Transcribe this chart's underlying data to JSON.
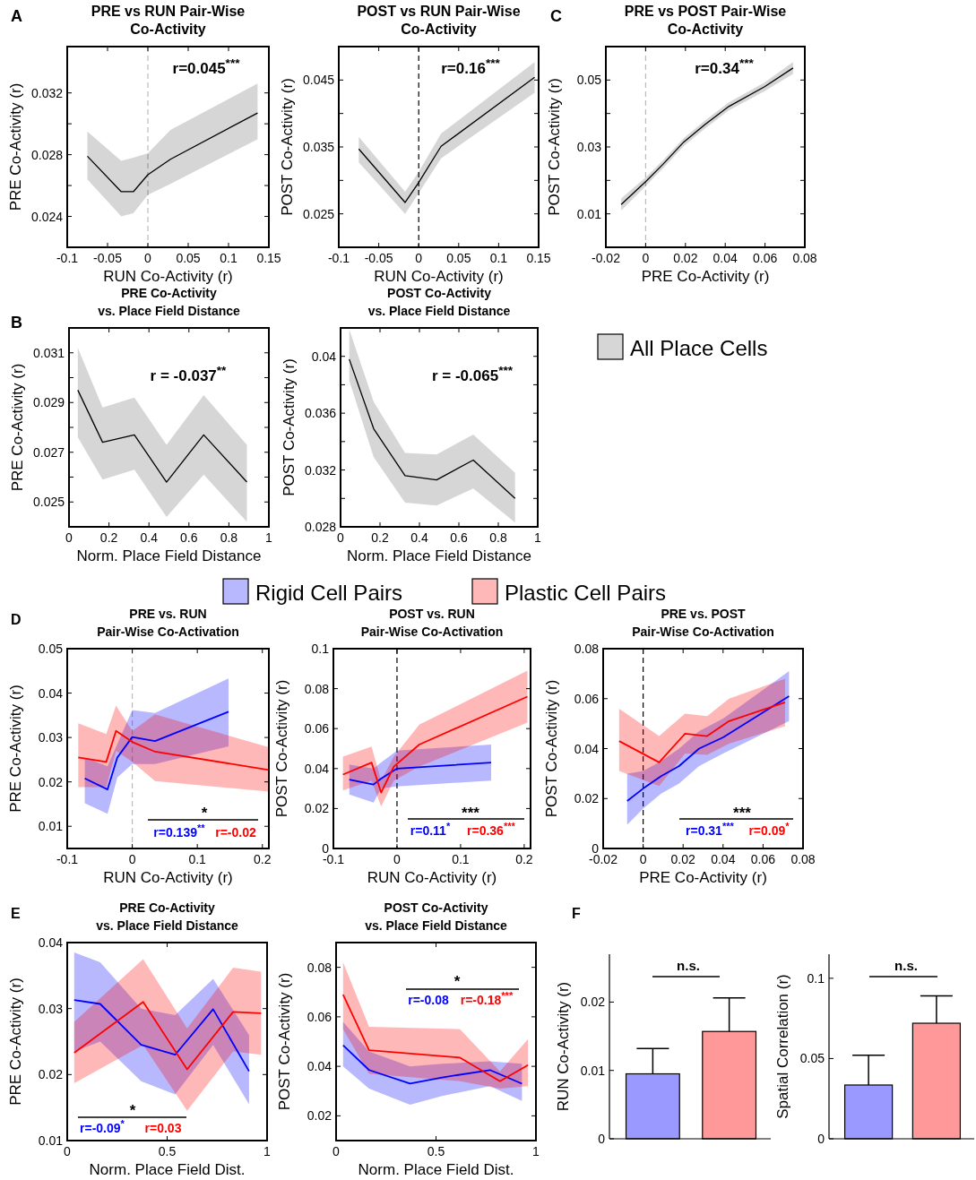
{
  "chart_data": [
    {
      "type": "line",
      "title": "PRE vs RUN Pair-Wise\nCo-Activity",
      "xlabel": "RUN Co-Activity (r)",
      "ylabel": "PRE Co-Activity (r)",
      "annotations": [
        "A",
        "r=0.045$^{***}$"
      ],
      "xlim": [
        -0.1,
        0.15
      ],
      "xticks": [
        -0.1,
        -0.05,
        0,
        0.05,
        0.1,
        0.15
      ],
      "ylim": [
        0.022,
        0.035
      ],
      "yticks": [
        0.024,
        {
          "value": 0.026,
          "label": null
        },
        0.028,
        {
          "value": 0.03,
          "label": null
        },
        0.032
      ],
      "ref_lines": [
        {
          "axis": "x",
          "value": 0,
          "color": "#bbbbbb",
          "line_style": "dashed"
        }
      ],
      "series": [
        {
          "color": "#000000",
          "x": [
            -0.075,
            -0.033,
            -0.018,
            0,
            0.028,
            0.136
          ],
          "values": [
            0.0279,
            0.0256,
            0.0256,
            0.0267,
            0.0277,
            0.0307
          ],
          "lower": [
            0.0264,
            0.024,
            0.0242,
            0.0254,
            0.0261,
            0.029
          ],
          "upper": [
            0.0295,
            0.0276,
            0.0278,
            0.0281,
            0.0296,
            0.0326
          ]
        }
      ]
    },
    {
      "type": "line",
      "title": "POST vs RUN Pair-Wise\nCo-Activity",
      "xlabel": "RUN Co-Activity (r)",
      "ylabel": "POST Co-Activity (r)",
      "annotations": [
        "r=0.16$^{***}$"
      ],
      "xlim": [
        -0.1,
        0.15
      ],
      "xticks": [
        -0.1,
        -0.05,
        0,
        0.05,
        0.1,
        0.15
      ],
      "ylim": [
        0.02,
        0.05
      ],
      "yticks": [
        0.025,
        {
          "value": 0.03,
          "label": null
        },
        0.035,
        {
          "value": 0.04,
          "label": null
        },
        0.045
      ],
      "ref_lines": [
        {
          "axis": "x",
          "value": 0,
          "color": "#000000",
          "line_style": "dashed"
        }
      ],
      "series": [
        {
          "color": "#000000",
          "x": [
            -0.075,
            -0.017,
            0,
            0.028,
            0.145
          ],
          "values": [
            0.0347,
            0.0267,
            0.0297,
            0.0351,
            0.0454
          ],
          "lower": [
            0.0327,
            0.025,
            0.0281,
            0.0333,
            0.0431
          ],
          "upper": [
            0.0365,
            0.0283,
            0.0313,
            0.037,
            0.0477
          ]
        }
      ]
    },
    {
      "type": "line",
      "title": "PRE vs POST Pair-Wise\nCo-Activity",
      "xlabel": "PRE Co-Activity (r)",
      "ylabel": "POST Co-Activity (r)",
      "annotations": [
        "C",
        "r=0.34$^{***}$"
      ],
      "xlim": [
        -0.02,
        0.08
      ],
      "xticks": [
        -0.02,
        0,
        0.02,
        0.04,
        0.06,
        0.08
      ],
      "ylim": [
        0,
        0.06
      ],
      "yticks": [
        0.01,
        {
          "value": 0.02,
          "label": null
        },
        0.03,
        {
          "value": 0.04,
          "label": null
        },
        0.05
      ],
      "ref_lines": [
        {
          "axis": "x",
          "value": 0,
          "color": "#bbbbbb",
          "line_style": "dashed"
        }
      ],
      "series": [
        {
          "color": "#000000",
          "x": [
            -0.0123,
            0,
            0.0087,
            0.0192,
            0.0298,
            0.0418,
            0.0598,
            0.0741
          ],
          "values": [
            0.0128,
            0.0196,
            0.0248,
            0.0315,
            0.0367,
            0.0421,
            0.048,
            0.0536
          ],
          "lower": [
            0.011,
            0.0183,
            0.0236,
            0.0303,
            0.0355,
            0.0409,
            0.0467,
            0.0518
          ],
          "upper": [
            0.0146,
            0.0209,
            0.026,
            0.0327,
            0.0379,
            0.0433,
            0.0493,
            0.0554
          ]
        }
      ]
    },
    {
      "type": "line",
      "title": "PRE Co-Activity\nvs. Place Field Distance",
      "xlabel": "Norm. Place Field Distance",
      "ylabel": "PRE Co-Activity (r)",
      "annotations": [
        "B",
        "r = -0.037$^{**}$"
      ],
      "xlim": [
        0,
        1
      ],
      "xticks": [
        0,
        0.2,
        0.4,
        0.6,
        0.8,
        1
      ],
      "ylim": [
        0.024,
        0.032
      ],
      "yticks": [
        0.025,
        {
          "value": 0.026,
          "label": null
        },
        0.027,
        {
          "value": 0.028,
          "label": null
        },
        0.029,
        {
          "value": 0.03,
          "label": null
        },
        0.031
      ],
      "series": [
        {
          "color": "#000000",
          "x": [
            0.044,
            0.168,
            0.327,
            0.488,
            0.674,
            0.89
          ],
          "values": [
            0.0295,
            0.0274,
            0.0277,
            0.0258,
            0.0277,
            0.0258
          ],
          "lower": [
            0.0276,
            0.0259,
            0.0263,
            0.0244,
            0.0261,
            0.0242
          ],
          "upper": [
            0.0312,
            0.0288,
            0.0292,
            0.0273,
            0.0293,
            0.0273
          ]
        }
      ]
    },
    {
      "type": "line",
      "title": "POST Co-Activity\nvs. Place Field Distance",
      "xlabel": "Norm. Place Field Distance",
      "ylabel": "POST Co-Activity (r)",
      "annotations": [
        "r = -0.065$^{***}$"
      ],
      "legend": "right",
      "xlim": [
        0,
        1
      ],
      "xticks": [
        0,
        0.2,
        0.4,
        0.6,
        0.8,
        1
      ],
      "ylim": [
        0.028,
        0.042
      ],
      "yticks": [
        0.028,
        {
          "value": 0.03,
          "label": null
        },
        0.032,
        {
          "value": 0.034,
          "label": null
        },
        0.036,
        {
          "value": 0.038,
          "label": null
        },
        0.04
      ],
      "series": [
        {
          "name": "All Place Cells",
          "color": "#000000",
          "x": [
            0.044,
            0.168,
            0.327,
            0.487,
            0.673,
            0.885
          ],
          "values": [
            0.0398,
            0.0349,
            0.0316,
            0.0313,
            0.0327,
            0.03
          ],
          "lower": [
            0.0383,
            0.0329,
            0.0297,
            0.0295,
            0.0307,
            0.0283
          ],
          "upper": [
            0.0419,
            0.0368,
            0.0332,
            0.0331,
            0.0345,
            0.0318
          ]
        }
      ]
    },
    {
      "type": "line",
      "title": "PRE vs. RUN\nPair-Wise Co-Activation",
      "xlabel": "RUN Co-Activity (r)",
      "ylabel": "PRE Co-Activity (r)",
      "annotations": [
        "D",
        "*",
        "r=0.139$^{**}$",
        "r=-0.02"
      ],
      "legend": "top",
      "xlim": [
        -0.1,
        0.21
      ],
      "xticks": [
        -0.1,
        0,
        0.1,
        0.2
      ],
      "ylim": [
        0.005,
        0.05
      ],
      "yticks": [
        0.01,
        0.02,
        0.03,
        0.04,
        0.05
      ],
      "ref_lines": [
        {
          "axis": "x",
          "value": 0,
          "color": "#bbbbbb",
          "line_style": "dashed"
        }
      ],
      "series": [
        {
          "name": "Rigid Cell Pairs",
          "color": "#0000ff",
          "x": [
            -0.073,
            -0.038,
            -0.023,
            0,
            0.035,
            0.148
          ],
          "values": [
            0.0208,
            0.0183,
            0.0255,
            0.0301,
            0.0292,
            0.0358
          ],
          "lower": [
            0.0152,
            0.0128,
            0.021,
            0.024,
            0.024,
            0.028
          ],
          "upper": [
            0.0255,
            0.0235,
            0.0285,
            0.0362,
            0.0355,
            0.0433
          ]
        },
        {
          "name": "Plastic Cell Pairs",
          "color": "#ff0000",
          "x": [
            -0.083,
            -0.04,
            -0.025,
            0,
            0.035,
            0.21
          ],
          "values": [
            0.0255,
            0.0245,
            0.0315,
            0.029,
            0.0268,
            0.0227
          ],
          "lower": [
            0.0188,
            0.0188,
            0.027,
            0.0245,
            0.0202,
            0.0178
          ],
          "upper": [
            0.0332,
            0.0308,
            0.0372,
            0.0315,
            0.0352,
            0.0278
          ]
        }
      ]
    },
    {
      "type": "line",
      "title": "POST vs. RUN\nPair-Wise Co-Activation",
      "xlabel": "RUN Co-Activity (r)",
      "ylabel": "POST Co-Activity (r)",
      "annotations": [
        "***",
        "r=0.11$^{*}$",
        "r=0.36$^{***}$"
      ],
      "xlim": [
        -0.1,
        0.21
      ],
      "xticks": [
        -0.1,
        0,
        0.1,
        0.2
      ],
      "ylim": [
        0,
        0.1
      ],
      "yticks": [
        0,
        0.02,
        0.04,
        0.06,
        0.08,
        0.1
      ],
      "ref_lines": [
        {
          "axis": "x",
          "value": 0,
          "color": "#000000",
          "line_style": "dashed"
        }
      ],
      "series": [
        {
          "color": "#0000ff",
          "x": [
            -0.075,
            -0.037,
            -0.025,
            0,
            0.148
          ],
          "values": [
            0.0345,
            0.032,
            0.035,
            0.04,
            0.043
          ],
          "lower": [
            0.027,
            0.023,
            0.03,
            0.031,
            0.034
          ],
          "upper": [
            0.042,
            0.04,
            0.043,
            0.049,
            0.052
          ]
        },
        {
          "color": "#ff0000",
          "x": [
            -0.085,
            -0.04,
            -0.025,
            -0.005,
            0.035,
            0.205
          ],
          "values": [
            0.037,
            0.043,
            0.028,
            0.041,
            0.052,
            0.076
          ],
          "lower": [
            0.029,
            0.034,
            0.021,
            0.034,
            0.041,
            0.063
          ],
          "upper": [
            0.046,
            0.051,
            0.034,
            0.046,
            0.062,
            0.089
          ]
        }
      ]
    },
    {
      "type": "line",
      "title": "PRE vs. POST\nPair-Wise Co-Activation",
      "xlabel": "PRE Co-Activity (r)",
      "ylabel": "POST Co-Activity (r)",
      "annotations": [
        "***",
        "r=0.31$^{***}$",
        "r=0.09$^{*}$"
      ],
      "xlim": [
        -0.02,
        0.08
      ],
      "xticks": [
        -0.02,
        0,
        0.02,
        0.04,
        0.06,
        0.08
      ],
      "ylim": [
        0,
        0.08
      ],
      "yticks": [
        0,
        0.02,
        0.04,
        0.06,
        0.08
      ],
      "ref_lines": [
        {
          "axis": "x",
          "value": 0,
          "color": "#000000",
          "line_style": "dashed"
        }
      ],
      "series": [
        {
          "color": "#0000ff",
          "x": [
            -0.008,
            0,
            0.009,
            0.018,
            0.028,
            0.04,
            0.073
          ],
          "values": [
            0.019,
            0.024,
            0.029,
            0.033,
            0.04,
            0.0445,
            0.061
          ],
          "lower": [
            0.0095,
            0.016,
            0.022,
            0.026,
            0.033,
            0.038,
            0.051
          ],
          "upper": [
            0.03,
            0.031,
            0.035,
            0.04,
            0.047,
            0.052,
            0.071
          ]
        },
        {
          "color": "#ff0000",
          "x": [
            -0.012,
            0.008,
            0.021,
            0.032,
            0.043,
            0.071
          ],
          "values": [
            0.043,
            0.0345,
            0.046,
            0.045,
            0.051,
            0.0585
          ],
          "lower": [
            0.031,
            0.025,
            0.038,
            0.0375,
            0.042,
            0.049
          ],
          "upper": [
            0.056,
            0.045,
            0.054,
            0.053,
            0.06,
            0.068
          ]
        }
      ]
    },
    {
      "type": "line",
      "title": "PRE Co-Activity\nvs. Place Field Distance",
      "xlabel": "Norm. Place Field Dist.",
      "ylabel": "PRE Co-Activity (r)",
      "annotations": [
        "E",
        "*",
        "r=-0.09$^{*}$",
        "r=0.03"
      ],
      "xlim": [
        0,
        1
      ],
      "xticks": [
        0,
        0.5,
        1
      ],
      "ylim": [
        0.01,
        0.04
      ],
      "yticks": [
        0.01,
        0.02,
        0.03,
        0.04
      ],
      "series": [
        {
          "color": "#0000ff",
          "x": [
            0.035,
            0.165,
            0.37,
            0.54,
            0.73,
            0.91
          ],
          "values": [
            0.0313,
            0.0307,
            0.0245,
            0.023,
            0.0299,
            0.0205
          ],
          "lower": [
            0.0235,
            0.025,
            0.019,
            0.017,
            0.0245,
            0.0155
          ],
          "upper": [
            0.0385,
            0.037,
            0.03,
            0.029,
            0.0345,
            0.026
          ]
        },
        {
          "color": "#ff0000",
          "x": [
            0.035,
            0.38,
            0.6,
            0.83,
            0.97
          ],
          "values": [
            0.0233,
            0.031,
            0.0208,
            0.0295,
            0.0293
          ],
          "lower": [
            0.0187,
            0.0245,
            0.0145,
            0.0235,
            0.023
          ],
          "upper": [
            0.028,
            0.0375,
            0.027,
            0.0362,
            0.0356
          ]
        }
      ]
    },
    {
      "type": "line",
      "title": "POST Co-Activity\nvs. Place Field Distance",
      "xlabel": "Norm. Place Field Dist.",
      "ylabel": "POST Co-Activity (r)",
      "annotations": [
        "*",
        "r=-0.08",
        "r=-0.18$^{***}$"
      ],
      "xlim": [
        0,
        1
      ],
      "xticks": [
        0,
        0.5,
        1
      ],
      "ylim": [
        0.01,
        0.09
      ],
      "yticks": [
        0.02,
        0.04,
        0.06,
        0.08
      ],
      "series": [
        {
          "color": "#0000ff",
          "x": [
            0.035,
            0.165,
            0.37,
            0.53,
            0.77,
            0.93
          ],
          "values": [
            0.0485,
            0.0385,
            0.033,
            0.0355,
            0.0385,
            0.033
          ],
          "lower": [
            0.04,
            0.031,
            0.0245,
            0.028,
            0.032,
            0.026
          ],
          "upper": [
            0.058,
            0.046,
            0.04,
            0.041,
            0.042,
            0.041
          ]
        },
        {
          "color": "#ff0000",
          "x": [
            0.035,
            0.165,
            0.62,
            0.82,
            0.96
          ],
          "values": [
            0.069,
            0.0465,
            0.0435,
            0.034,
            0.0405
          ],
          "lower": [
            0.055,
            0.037,
            0.034,
            0.031,
            0.032
          ],
          "upper": [
            0.082,
            0.056,
            0.055,
            0.038,
            0.051
          ]
        }
      ]
    },
    {
      "type": "bar",
      "ylabel": "RUN Co-Activity (r)",
      "annotations": [
        "F",
        "n.s."
      ],
      "categories": [
        null,
        null
      ],
      "values": [
        0.0095,
        0.0157
      ],
      "colors": [
        "#9999ff",
        "#ff9999"
      ],
      "errors": [
        [
          0.0095,
          0.0132
        ],
        [
          0.0157,
          0.0206
        ]
      ],
      "ylim": [
        0,
        0.027
      ],
      "yticks": [
        0,
        0.01,
        0.02
      ]
    },
    {
      "type": "bar",
      "ylabel": "Spatial Correlation (r)",
      "annotations": [
        "n.s."
      ],
      "categories": [
        null,
        null
      ],
      "values": [
        0.0335,
        0.072
      ],
      "colors": [
        "#9999ff",
        "#ff9999"
      ],
      "errors": [
        [
          0.0335,
          0.052
        ],
        [
          0.072,
          0.089
        ]
      ],
      "ylim": [
        0,
        0.115
      ],
      "yticks": [
        0,
        0.05,
        0.1
      ]
    }
  ]
}
